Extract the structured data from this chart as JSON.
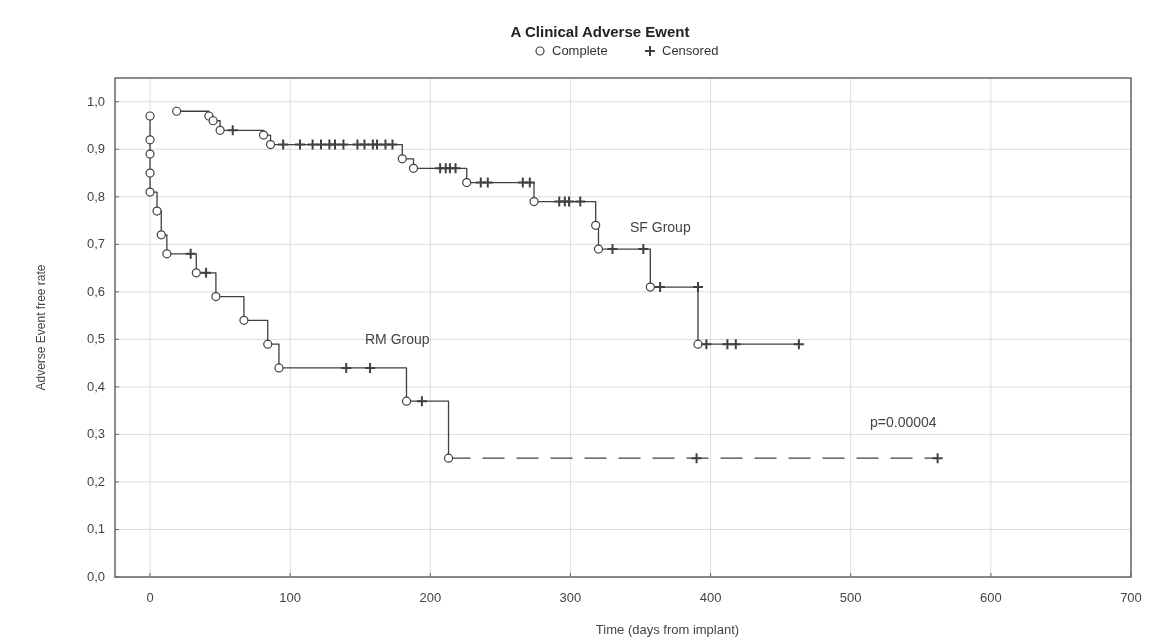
{
  "chart_data": {
    "type": "step",
    "title": "A Clinical Adverse Ewent",
    "xlabel": "Time (days from implant)",
    "ylabel": "Adverse Event free rate",
    "xlim": [
      -25,
      700
    ],
    "xticks": [
      0,
      100,
      200,
      300,
      400,
      500,
      600,
      700
    ],
    "ylim": [
      0,
      1.05
    ],
    "yticks": [
      {
        "value": 0,
        "label": "0,0"
      },
      {
        "value": 0.1,
        "label": "0,1"
      },
      {
        "value": 0.2,
        "label": "0,2"
      },
      {
        "value": 0.3,
        "label": "0,3"
      },
      {
        "value": 0.4,
        "label": "0,4"
      },
      {
        "value": 0.5,
        "label": "0,5"
      },
      {
        "value": 0.6,
        "label": "0,6"
      },
      {
        "value": 0.7,
        "label": "0,7"
      },
      {
        "value": 0.8,
        "label": "0,8"
      },
      {
        "value": 0.9,
        "label": "0,9"
      },
      {
        "value": 1,
        "label": "1,0"
      }
    ],
    "grid": true,
    "legend": "top",
    "series": [
      {
        "color": "#404040",
        "line_style": "solid",
        "marker": "none",
        "x": [
          19,
          42,
          45,
          50,
          81,
          86,
          180,
          188,
          226,
          274,
          318,
          320,
          357,
          391,
          463
        ],
        "values": [
          0.98,
          0.97,
          0.96,
          0.94,
          0.93,
          0.91,
          0.88,
          0.86,
          0.83,
          0.79,
          0.74,
          0.69,
          0.61,
          0.49,
          0.49
        ]
      },
      {
        "color": "#404040",
        "line_style": "solid",
        "marker": "none",
        "x": [
          0,
          0,
          0,
          0,
          0,
          5,
          8,
          12,
          33,
          47,
          67,
          84,
          92,
          183,
          213
        ],
        "values": [
          0.97,
          0.92,
          0.89,
          0.85,
          0.81,
          0.77,
          0.72,
          0.68,
          0.64,
          0.59,
          0.54,
          0.49,
          0.44,
          0.37,
          0.25
        ]
      },
      {
        "color": "#404040",
        "line_style": "dashed",
        "marker": "none",
        "x": [
          213,
          562
        ],
        "values": [
          0.25,
          0.25
        ]
      },
      {
        "type": "scatter",
        "name": "Complete",
        "color": "#404040",
        "marker": "circle",
        "x": [
          19,
          42,
          45,
          50,
          81,
          86,
          180,
          188,
          226,
          274,
          318,
          320,
          357,
          391,
          0,
          0,
          0,
          0,
          0,
          5,
          8,
          12,
          33,
          47,
          67,
          84,
          92,
          183,
          213
        ],
        "values": [
          0.98,
          0.97,
          0.96,
          0.94,
          0.93,
          0.91,
          0.88,
          0.86,
          0.83,
          0.79,
          0.74,
          0.69,
          0.61,
          0.49,
          0.97,
          0.92,
          0.89,
          0.85,
          0.81,
          0.77,
          0.72,
          0.68,
          0.64,
          0.59,
          0.54,
          0.49,
          0.44,
          0.37,
          0.25
        ]
      },
      {
        "type": "scatter",
        "name": "Censored",
        "color": "#404040",
        "marker": "cross",
        "x": [
          59,
          95,
          107,
          116,
          122,
          128,
          132,
          138,
          148,
          153,
          159,
          162,
          168,
          173,
          207,
          211,
          214,
          218,
          236,
          241,
          266,
          271,
          292,
          296,
          299,
          307,
          330,
          352,
          364,
          391,
          397,
          412,
          418,
          463,
          29,
          40,
          140,
          157,
          194,
          390,
          562
        ],
        "values": [
          0.94,
          0.91,
          0.91,
          0.91,
          0.91,
          0.91,
          0.91,
          0.91,
          0.91,
          0.91,
          0.91,
          0.91,
          0.91,
          0.91,
          0.86,
          0.86,
          0.86,
          0.86,
          0.83,
          0.83,
          0.83,
          0.83,
          0.79,
          0.79,
          0.79,
          0.79,
          0.69,
          0.69,
          0.61,
          0.61,
          0.49,
          0.49,
          0.49,
          0.49,
          0.68,
          0.64,
          0.44,
          0.44,
          0.37,
          0.25,
          0.25
        ]
      }
    ],
    "annotations": [
      "SF Group",
      "RM Group",
      "p=0.00004"
    ]
  }
}
